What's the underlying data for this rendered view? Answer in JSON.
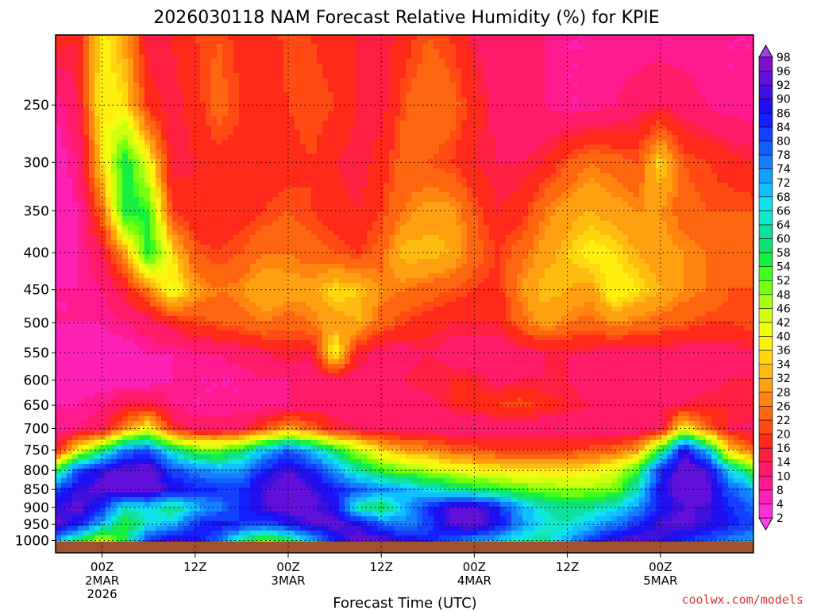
{
  "chart_data": {
    "type": "heatmap",
    "title": "2026030118 NAM Forecast Relative Humidity (%) for KPIE",
    "xlabel": "Forecast Time (UTC)",
    "ylabel": "",
    "credit": "coolwx.com/models",
    "y_scale": "log",
    "y_range_hpa": [
      200,
      1040
    ],
    "y_ticks": [
      250,
      300,
      350,
      400,
      450,
      500,
      550,
      600,
      650,
      700,
      750,
      800,
      850,
      900,
      950,
      1000
    ],
    "x_range_hours": [
      -6,
      84
    ],
    "x_ticks": [
      {
        "hour": 0,
        "lines": [
          "00Z",
          "2MAR",
          "2026"
        ]
      },
      {
        "hour": 12,
        "lines": [
          "12Z"
        ]
      },
      {
        "hour": 24,
        "lines": [
          "00Z",
          "3MAR"
        ]
      },
      {
        "hour": 36,
        "lines": [
          "12Z"
        ]
      },
      {
        "hour": 48,
        "lines": [
          "00Z",
          "4MAR"
        ]
      },
      {
        "hour": 60,
        "lines": [
          "12Z"
        ]
      },
      {
        "hour": 72,
        "lines": [
          "00Z",
          "5MAR"
        ]
      }
    ],
    "grid": true,
    "legend_placement": "right",
    "colorbar": {
      "levels": [
        2,
        4,
        8,
        10,
        14,
        16,
        20,
        22,
        26,
        28,
        32,
        34,
        36,
        40,
        42,
        46,
        48,
        52,
        54,
        58,
        60,
        64,
        66,
        68,
        72,
        74,
        78,
        80,
        84,
        86,
        90,
        92,
        96,
        98
      ],
      "colors": [
        "#ff3ef2",
        "#ff2fd6",
        "#ff20b6",
        "#ff1a90",
        "#ff1a6a",
        "#ff1f40",
        "#ff2a1a",
        "#ff4a14",
        "#ff6610",
        "#ff8410",
        "#ffa010",
        "#ffbc10",
        "#ffd810",
        "#fff010",
        "#f0ff10",
        "#d0ff10",
        "#a8ff10",
        "#78ff10",
        "#40ff20",
        "#18f040",
        "#10e070",
        "#10e0a0",
        "#10e8cc",
        "#10e0f0",
        "#10c0ff",
        "#10a0ff",
        "#1480ff",
        "#1460ff",
        "#1440ff",
        "#1420ff",
        "#2010f0",
        "#4010e0",
        "#6010d8",
        "#8010d0",
        "#a040e0"
      ]
    },
    "grid_levels_hpa": [
      200,
      250,
      300,
      350,
      400,
      450,
      500,
      550,
      600,
      650,
      700,
      750,
      800,
      850,
      900,
      950,
      1000
    ],
    "times_hours": [
      -6,
      -3,
      0,
      3,
      6,
      9,
      12,
      15,
      18,
      21,
      24,
      27,
      30,
      33,
      36,
      39,
      42,
      45,
      48,
      51,
      54,
      57,
      60,
      63,
      66,
      69,
      72,
      75,
      78,
      81,
      84
    ],
    "rh_percent": [
      [
        18,
        16,
        38,
        30,
        14,
        16,
        20,
        22,
        18,
        16,
        22,
        20,
        18,
        16,
        14,
        18,
        22,
        20,
        14,
        10,
        12,
        10,
        8,
        8,
        8,
        8,
        8,
        8,
        8,
        8,
        8
      ],
      [
        8,
        14,
        40,
        36,
        18,
        14,
        18,
        24,
        20,
        16,
        20,
        22,
        20,
        16,
        14,
        22,
        26,
        24,
        18,
        12,
        10,
        10,
        8,
        8,
        10,
        12,
        14,
        12,
        10,
        8,
        8
      ],
      [
        6,
        10,
        36,
        58,
        40,
        14,
        16,
        18,
        18,
        18,
        18,
        20,
        16,
        14,
        18,
        24,
        22,
        20,
        16,
        14,
        14,
        16,
        22,
        26,
        24,
        22,
        36,
        22,
        20,
        18,
        16
      ],
      [
        6,
        8,
        24,
        58,
        54,
        20,
        16,
        16,
        18,
        20,
        22,
        20,
        18,
        16,
        20,
        26,
        30,
        30,
        22,
        16,
        18,
        26,
        30,
        32,
        30,
        28,
        28,
        24,
        22,
        22,
        22
      ],
      [
        6,
        8,
        14,
        30,
        58,
        36,
        22,
        20,
        22,
        26,
        26,
        24,
        22,
        20,
        24,
        34,
        34,
        32,
        24,
        20,
        24,
        30,
        34,
        38,
        36,
        32,
        30,
        28,
        26,
        24,
        22
      ],
      [
        8,
        8,
        10,
        16,
        26,
        42,
        30,
        26,
        28,
        32,
        30,
        30,
        36,
        34,
        28,
        26,
        24,
        22,
        20,
        18,
        28,
        34,
        32,
        30,
        40,
        36,
        32,
        28,
        26,
        22,
        22
      ],
      [
        8,
        8,
        8,
        10,
        12,
        16,
        20,
        22,
        24,
        26,
        24,
        26,
        30,
        32,
        24,
        20,
        18,
        16,
        16,
        16,
        24,
        30,
        26,
        24,
        28,
        26,
        24,
        22,
        20,
        20,
        22
      ],
      [
        6,
        6,
        6,
        6,
        8,
        8,
        10,
        10,
        12,
        14,
        16,
        14,
        40,
        16,
        12,
        12,
        14,
        12,
        10,
        10,
        12,
        14,
        14,
        14,
        12,
        12,
        12,
        12,
        12,
        12,
        14
      ],
      [
        6,
        6,
        6,
        6,
        6,
        8,
        8,
        8,
        8,
        10,
        10,
        12,
        12,
        12,
        12,
        14,
        16,
        16,
        16,
        12,
        14,
        14,
        14,
        12,
        12,
        12,
        12,
        12,
        12,
        14,
        14
      ],
      [
        8,
        8,
        10,
        14,
        16,
        10,
        8,
        8,
        8,
        8,
        10,
        12,
        12,
        12,
        10,
        10,
        12,
        16,
        18,
        20,
        22,
        18,
        16,
        14,
        14,
        14,
        14,
        14,
        16,
        16,
        16
      ],
      [
        10,
        10,
        12,
        28,
        40,
        18,
        12,
        12,
        14,
        22,
        30,
        24,
        16,
        14,
        12,
        12,
        12,
        10,
        10,
        10,
        10,
        10,
        10,
        10,
        10,
        10,
        12,
        40,
        24,
        14,
        12
      ],
      [
        14,
        40,
        58,
        78,
        80,
        64,
        52,
        50,
        58,
        70,
        80,
        70,
        58,
        46,
        36,
        30,
        28,
        24,
        22,
        20,
        20,
        20,
        20,
        22,
        24,
        30,
        56,
        90,
        70,
        34,
        24
      ],
      [
        56,
        82,
        90,
        94,
        96,
        82,
        76,
        72,
        74,
        86,
        92,
        86,
        74,
        62,
        54,
        50,
        46,
        42,
        40,
        38,
        36,
        36,
        36,
        38,
        42,
        54,
        84,
        96,
        92,
        68,
        52
      ],
      [
        82,
        90,
        94,
        96,
        96,
        90,
        86,
        84,
        84,
        92,
        96,
        92,
        86,
        80,
        76,
        72,
        66,
        62,
        58,
        56,
        52,
        50,
        48,
        48,
        50,
        64,
        88,
        96,
        94,
        80,
        72
      ],
      [
        90,
        94,
        84,
        64,
        68,
        58,
        70,
        76,
        84,
        92,
        96,
        94,
        88,
        62,
        56,
        70,
        84,
        92,
        94,
        86,
        72,
        64,
        60,
        62,
        66,
        74,
        86,
        92,
        92,
        84,
        78
      ],
      [
        94,
        86,
        70,
        54,
        66,
        70,
        84,
        88,
        84,
        80,
        86,
        92,
        94,
        90,
        80,
        74,
        82,
        92,
        96,
        88,
        74,
        66,
        64,
        70,
        76,
        84,
        92,
        94,
        90,
        86,
        82
      ],
      [
        74,
        56,
        44,
        58,
        84,
        92,
        88,
        78,
        60,
        50,
        56,
        70,
        86,
        94,
        94,
        90,
        86,
        80,
        74,
        70,
        64,
        62,
        72,
        84,
        92,
        94,
        90,
        84,
        80,
        76,
        72
      ]
    ]
  }
}
